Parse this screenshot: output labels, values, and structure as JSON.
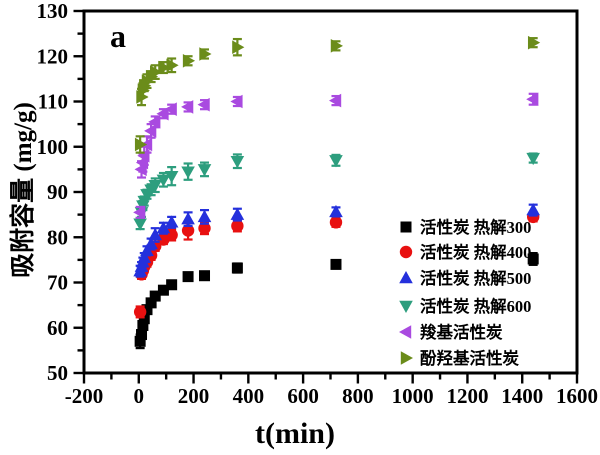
{
  "figure": {
    "background": "#ffffff",
    "axis_color": "#000000"
  },
  "chart_data": {
    "type": "scatter",
    "panel_label": "a",
    "title": "",
    "xlabel": "t(min)",
    "ylabel": "吸附容量 (mg/g)",
    "xlim": [
      -200,
      1600
    ],
    "ylim": [
      50,
      130
    ],
    "x_major_ticks": [
      -200,
      0,
      200,
      400,
      600,
      800,
      1000,
      1200,
      1400,
      1600
    ],
    "y_major_ticks": [
      50,
      60,
      70,
      80,
      90,
      100,
      110,
      120,
      130
    ],
    "x_minor_step": 100,
    "y_minor_step": 5,
    "grid": false,
    "error_bars": true,
    "legend_position": "inside-right-lower",
    "x": [
      5,
      10,
      15,
      20,
      30,
      45,
      60,
      90,
      120,
      180,
      240,
      360,
      720,
      1440
    ],
    "series": [
      {
        "name": "活性炭 热解300",
        "marker": "square",
        "color": "#000000",
        "values": [
          57,
          58.5,
          60.5,
          62,
          64,
          65.5,
          67,
          68.3,
          69.5,
          71.3,
          71.5,
          73.2,
          74,
          75.2
        ],
        "errors": [
          1.5,
          0.8,
          0.8,
          0.8,
          0.8,
          0.8,
          0.8,
          0.8,
          0.8,
          0.8,
          0.8,
          1.0,
          0.8,
          1.3
        ]
      },
      {
        "name": "活性炭 热解400",
        "marker": "circle",
        "color": "#e81010",
        "values": [
          63.5,
          71.8,
          72.6,
          73.5,
          74.5,
          76,
          78,
          79.5,
          80.5,
          81.5,
          82,
          82.5,
          83.3,
          84.5
        ],
        "errors": [
          1.2,
          1,
          1,
          1,
          1,
          1,
          1,
          1,
          1.2,
          2.0,
          1.3,
          1.2,
          1,
          1
        ]
      },
      {
        "name": "活性炭 热解500",
        "marker": "triangle-up",
        "color": "#2430dc",
        "values": [
          72.5,
          73.5,
          74.5,
          75.5,
          77,
          78.5,
          80.5,
          82,
          83.3,
          84,
          84.5,
          85,
          85.6,
          86
        ],
        "errors": [
          1.2,
          1,
          1,
          1,
          1,
          1.2,
          1.5,
          1.2,
          1.2,
          1.5,
          1.5,
          1.3,
          1,
          1.2
        ]
      },
      {
        "name": "活性炭 热解600",
        "marker": "triangle-down",
        "color": "#2d9e7e",
        "values": [
          83,
          85.5,
          87,
          88,
          89.5,
          90.5,
          91.5,
          92.7,
          93.5,
          94.5,
          95,
          96.8,
          97,
          97.5
        ],
        "errors": [
          1.2,
          1,
          1,
          1,
          1,
          1.2,
          1.5,
          1.5,
          2.0,
          1.8,
          1.5,
          1.5,
          1.2,
          1
        ]
      },
      {
        "name": "羧基活性炭",
        "marker": "triangle-left",
        "color": "#a94ae0",
        "values": [
          85.5,
          95,
          96.5,
          98,
          100.5,
          103.5,
          105.5,
          107.3,
          108.3,
          108.8,
          109.3,
          110,
          110.2,
          110.5
        ],
        "errors": [
          1.2,
          1.8,
          2.0,
          2.0,
          1.8,
          1.5,
          1.2,
          1,
          1,
          1,
          1,
          1,
          1,
          1.2
        ]
      },
      {
        "name": "酚羟基活性炭",
        "marker": "triangle-right",
        "color": "#6b8c1a",
        "values": [
          100.5,
          111,
          112.5,
          113.5,
          114.5,
          115.5,
          116.5,
          117.5,
          118,
          119,
          120.5,
          122,
          122.3,
          123
        ],
        "errors": [
          1.8,
          1.8,
          1.5,
          1.2,
          1.5,
          1.2,
          1.5,
          1.2,
          1.5,
          1,
          1,
          1.8,
          1,
          1
        ]
      }
    ]
  }
}
